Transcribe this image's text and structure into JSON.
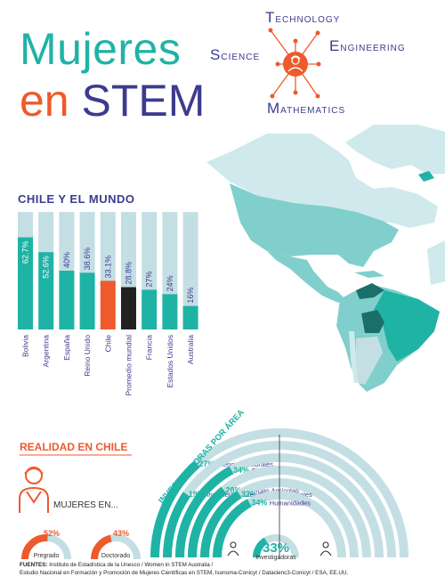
{
  "header": {
    "title_line1": "Mujeres",
    "title_line2_a": "en",
    "title_line2_b": "STEM",
    "stem_words": [
      {
        "initial": "T",
        "rest": "ECHNOLOGY"
      },
      {
        "initial": "S",
        "rest": "CIENCE"
      },
      {
        "initial": "E",
        "rest": "NGINEERING"
      },
      {
        "initial": "M",
        "rest": "ATHEMATICS"
      }
    ]
  },
  "chile_mundo": {
    "title": "CHILE Y EL MUNDO"
  },
  "realidad": {
    "title": "REALIDAD EN CHILE",
    "mujeres_en": "MUJERES EN..."
  },
  "investigadoras": {
    "title": "INVESTIGADORAS POR ÁREA"
  },
  "colors": {
    "teal": "#1fb3a6",
    "light_teal": "#c4dfe3",
    "orange": "#ee5a2c",
    "dark": "#222222",
    "navy": "#3d3b8e",
    "map_light": "#cfe9ec",
    "map_mid": "#80cfcc",
    "map_dark": "#1a6f6a"
  },
  "chart_data": [
    {
      "type": "bar",
      "title": "CHILE Y EL MUNDO",
      "categories": [
        "Bolivia",
        "Argentina",
        "España",
        "Reino Unido",
        "Chile",
        "Promedio mundial",
        "Francia",
        "Estados Unidos",
        "Australia"
      ],
      "values": [
        62.7,
        52.6,
        40,
        38.6,
        33.1,
        28.8,
        27,
        24,
        16
      ],
      "value_labels": [
        "62.7%",
        "52.6%",
        "40%",
        "38.6%",
        "33.1%",
        "28.8%",
        "27%",
        "24%",
        "16%"
      ],
      "highlight": {
        "Chile": "orange",
        "Promedio mundial": "dark"
      },
      "ylim": [
        0,
        80
      ]
    },
    {
      "type": "pie",
      "title": "MUJERES EN...",
      "items": [
        {
          "label": "Pregrado",
          "value": 52,
          "value_label": "52%"
        },
        {
          "label": "Doctorado",
          "value": 43,
          "value_label": "43%"
        },
        {
          "label": "Investigadoras",
          "value": 33,
          "value_label": "33%"
        }
      ]
    },
    {
      "type": "bar",
      "title": "INVESTIGADORAS POR ÁREA",
      "categories": [
        "Ciencias Naturales",
        "Ingeniería y Ciencias",
        "Ciencias Médicas",
        "Ciencias Agrícolas",
        "Ciencias Sociales",
        "Humanidades"
      ],
      "values": [
        27,
        19,
        34,
        28,
        32,
        34
      ],
      "value_labels": [
        "27%",
        "19%",
        "34%",
        "28%",
        "32%",
        "34%"
      ]
    }
  ],
  "footer": {
    "label": "FUENTES:",
    "line1": "Instituto de Estadística de la Unesco / Women in STEM Australia /",
    "line2": "Estudio Nacional en Formación y Promoción de Mujeres Científicas en STEM, Isonoma-Conicyt / Datacienc3-Conicyt / ESA, EE.UU."
  }
}
